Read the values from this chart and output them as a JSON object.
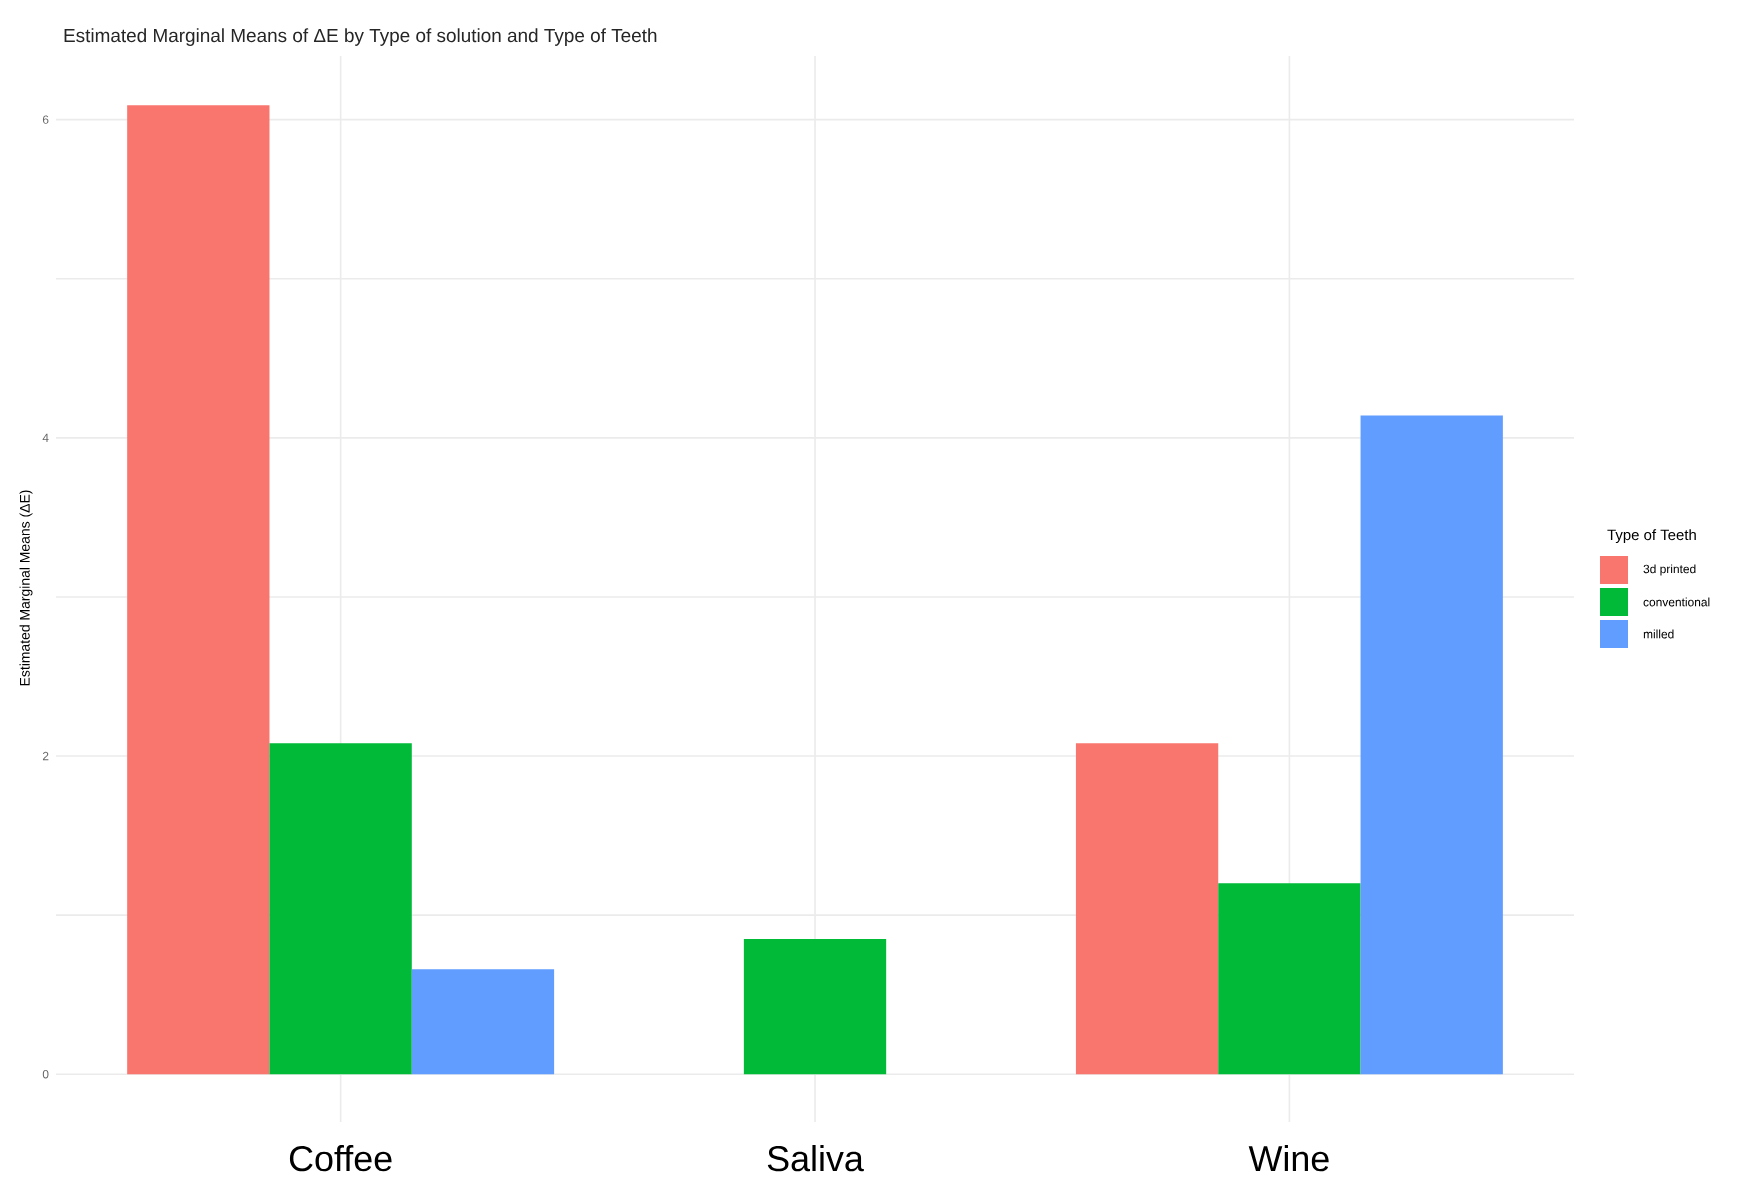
{
  "chart_data": {
    "type": "bar",
    "title": "Estimated Marginal Means of ΔE by Type of solution and Type of Teeth",
    "ylabel": "Estimated Marginal Means (ΔE)",
    "legend_title": "Type of Teeth",
    "categories": [
      "Coffee",
      "Saliva",
      "Wine"
    ],
    "series": [
      {
        "name": "3d printed",
        "color": "#f8766d",
        "values": [
          6.09,
          null,
          2.08
        ]
      },
      {
        "name": "conventional",
        "color": "#00ba38",
        "values": [
          2.08,
          0.85,
          1.2
        ]
      },
      {
        "name": "milled",
        "color": "#619cff",
        "values": [
          0.66,
          null,
          4.14
        ]
      }
    ],
    "ylim": [
      -0.3,
      6.4
    ],
    "yticks": [
      0,
      {
        "value": 1,
        "label": null
      },
      2,
      {
        "value": 3,
        "label": null
      },
      4,
      {
        "value": 5,
        "label": null
      },
      6
    ],
    "grid": true,
    "legend": "right"
  }
}
